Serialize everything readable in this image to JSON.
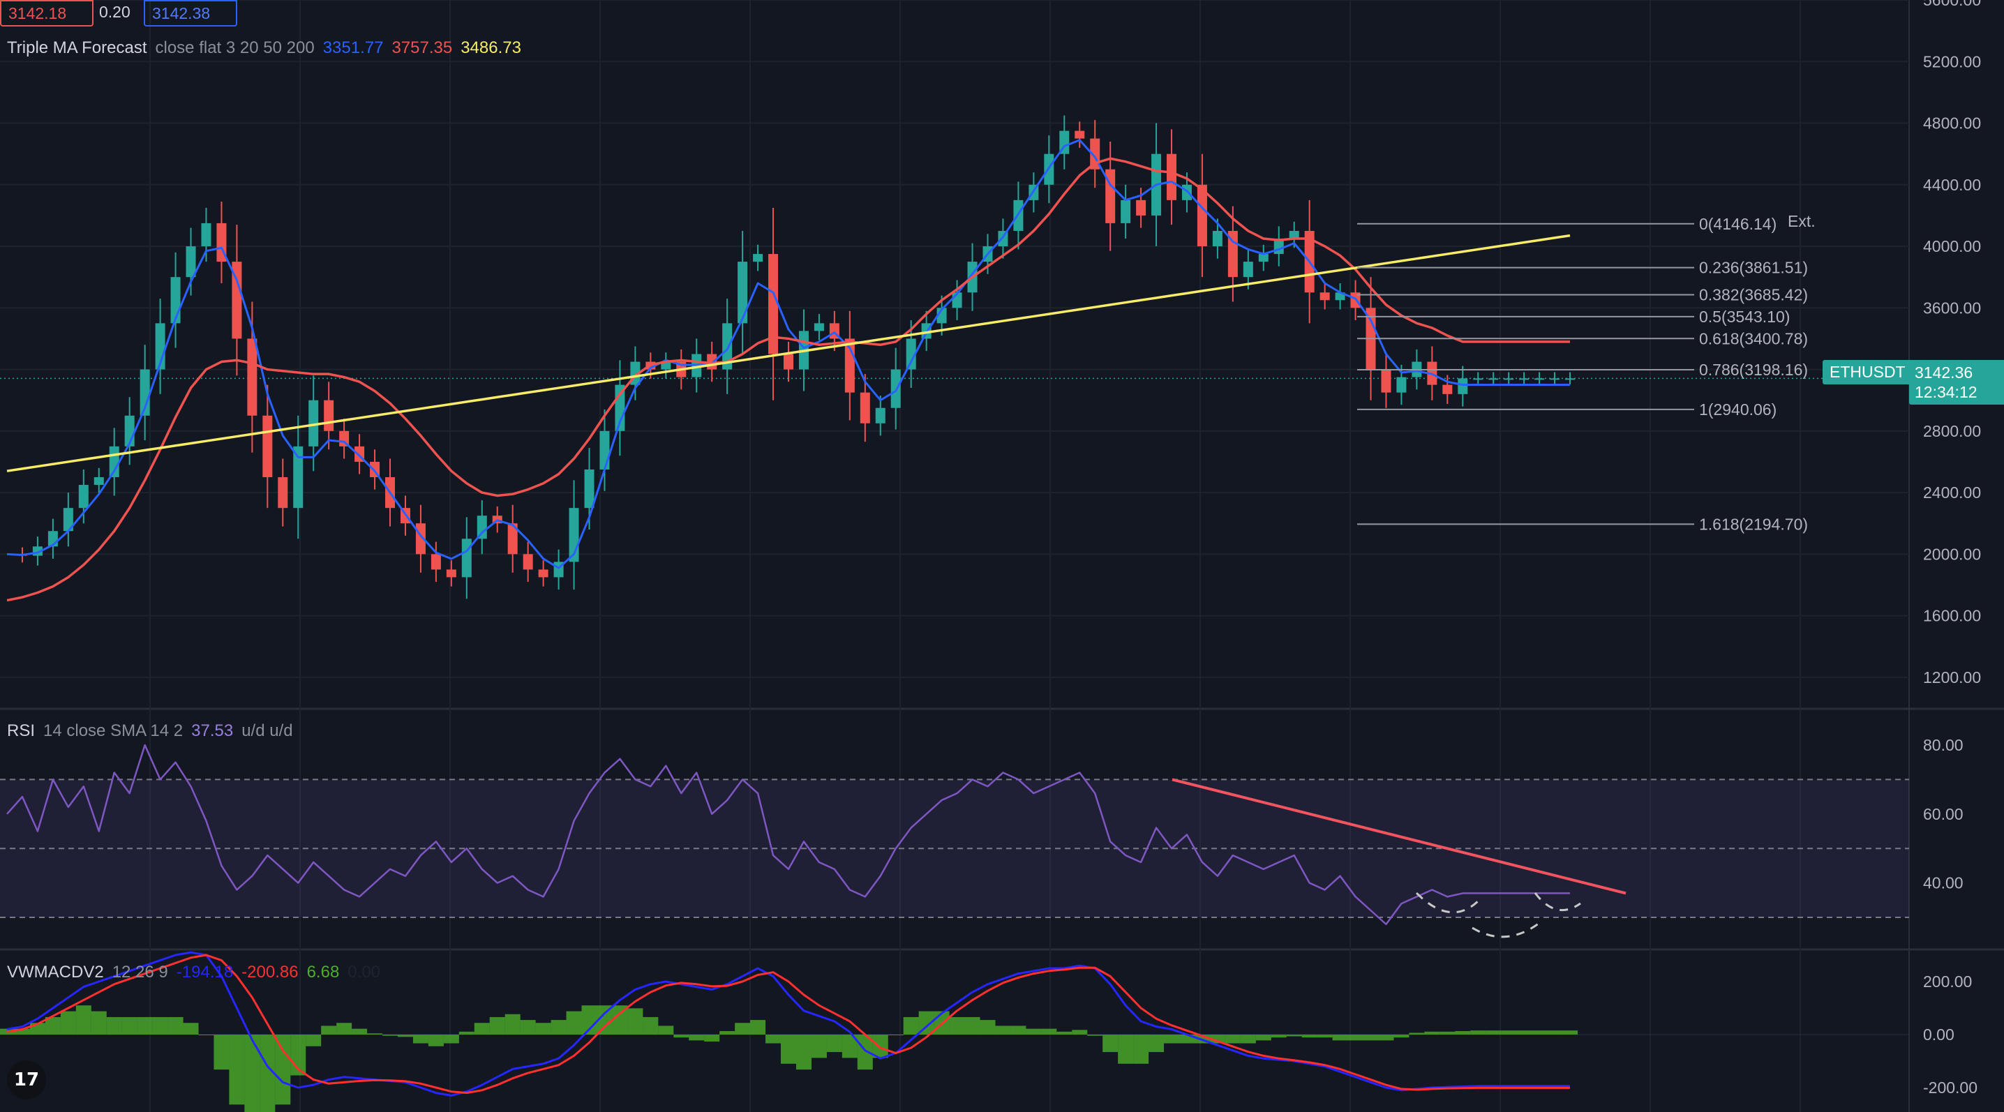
{
  "symbol": "ETHUSDT",
  "price_tag": {
    "label": "ETHUSDT",
    "price": "3142.36",
    "countdown": "12:34:12"
  },
  "quote_boxes": {
    "bid": "3142.18",
    "spread": "0.20",
    "ask": "3142.38"
  },
  "colors": {
    "up": "#26a69a",
    "down": "#ef5350",
    "ma3": "#2962ff",
    "ma20": "#ef5350",
    "ma200": "#f7ec6a",
    "rsi": "#7e57c2",
    "macd": "#2626ff",
    "signal": "#ff3030",
    "hist": "#4caf2a"
  },
  "main_legend": {
    "title": "Triple MA Forecast",
    "params": "close flat 3 20 50 200",
    "v1": "3351.77",
    "v2": "3757.35",
    "v3": "3486.73"
  },
  "rsi_legend": {
    "title": "RSI",
    "params": "14 close SMA 14 2",
    "value": "37.53",
    "extra": "u/d u/d"
  },
  "macd_legend": {
    "title": "VWMACDV2",
    "params": "12 26 9",
    "v1": "-194.18",
    "v2": "-200.86",
    "v3": "6.68",
    "v4": "0.00"
  },
  "price_axis_labels": [
    "5600.00",
    "5200.00",
    "4800.00",
    "4400.00",
    "4000.00",
    "3600.00",
    "2800.00",
    "2400.00",
    "2000.00",
    "1600.00",
    "1200.00"
  ],
  "rsi_axis_labels": [
    "80.00",
    "60.00",
    "40.00"
  ],
  "macd_axis_labels": [
    "200.00",
    "0.00",
    "-200.00"
  ],
  "fib_levels": [
    {
      "label": "0(4146.14)",
      "value": 4146.14
    },
    {
      "label": "0.236(3861.51)",
      "value": 3861.51
    },
    {
      "label": "0.382(3685.42)",
      "value": 3685.42
    },
    {
      "label": "0.5(3543.10)",
      "value": 3543.1
    },
    {
      "label": "0.618(3400.78)",
      "value": 3400.78
    },
    {
      "label": "0.786(3198.16)",
      "value": 3198.16
    },
    {
      "label": "1(2940.06)",
      "value": 2940.06
    },
    {
      "label": "1.618(2194.70)",
      "value": 2194.7
    }
  ],
  "fib_ext_label": "Ext.",
  "chart_data": {
    "type": "line",
    "ylim": [
      1000,
      5600
    ],
    "x": [
      0,
      2,
      4,
      6,
      8,
      10,
      12,
      14,
      16,
      18,
      20,
      22,
      24,
      26,
      28,
      30,
      32,
      34,
      36,
      38,
      40,
      42,
      44,
      46,
      48,
      50,
      52,
      54,
      56,
      58,
      60,
      62,
      64,
      66,
      68,
      70,
      72,
      74,
      76,
      78,
      80,
      82,
      84,
      86,
      88,
      90,
      92,
      94,
      96,
      98,
      100,
      102,
      104,
      106,
      108,
      110,
      112,
      114,
      116,
      118,
      120,
      122,
      124,
      126,
      128,
      130,
      132,
      134,
      136,
      138,
      140,
      142,
      144,
      146,
      148,
      150,
      152,
      154,
      156,
      158,
      160,
      162,
      164,
      166,
      168,
      170,
      172,
      174,
      176,
      178,
      180,
      182,
      184,
      186,
      188,
      190,
      192,
      194,
      196,
      198,
      200,
      202,
      204
    ],
    "series": [
      {
        "values": [
          2000,
          1990,
          2050,
          2150,
          2300,
          2450,
          2500,
          2700,
          2900,
          3200,
          3500,
          3800,
          4000,
          4150,
          3900,
          3400,
          2900,
          2500,
          2300,
          2700,
          3000,
          2800,
          2700,
          2600,
          2500,
          2300,
          2200,
          2000,
          1900,
          1850,
          2100,
          2250,
          2200,
          2000,
          1900,
          1850,
          1950,
          2300,
          2550,
          2800,
          3100,
          3250,
          3200,
          3250,
          3150,
          3300,
          3200,
          3500,
          3900,
          3950,
          3300,
          3200,
          3450,
          3500,
          3400,
          3050,
          2850,
          2950,
          3200,
          3400,
          3500,
          3600,
          3700,
          3900,
          4000,
          4100,
          4300,
          4400,
          4600,
          4750,
          4700,
          4500,
          4150,
          4300,
          4200,
          4600,
          4300,
          4400,
          4000,
          4100,
          3800,
          3900,
          3950,
          4050,
          4100,
          3700,
          3650,
          3700,
          3600,
          3200,
          3050,
          3150,
          3250,
          3100,
          3040,
          3142,
          3142,
          3142,
          3142,
          3142,
          3142,
          3142,
          3142
        ]
      },
      {
        "values": [
          2000,
          1995,
          2010,
          2060,
          2150,
          2270,
          2390,
          2540,
          2720,
          2950,
          3240,
          3530,
          3770,
          3970,
          3990,
          3780,
          3470,
          3040,
          2770,
          2630,
          2630,
          2740,
          2730,
          2640,
          2540,
          2400,
          2260,
          2120,
          2010,
          1970,
          2020,
          2140,
          2220,
          2190,
          2090,
          1970,
          1910,
          2000,
          2240,
          2550,
          2860,
          3080,
          3210,
          3260,
          3230,
          3230,
          3240,
          3330,
          3530,
          3760,
          3700,
          3460,
          3340,
          3380,
          3440,
          3340,
          3120,
          3000,
          3060,
          3250,
          3440,
          3590,
          3690,
          3820,
          3950,
          4060,
          4210,
          4360,
          4510,
          4650,
          4690,
          4580,
          4400,
          4300,
          4330,
          4400,
          4420,
          4360,
          4250,
          4150,
          4030,
          3980,
          3950,
          3980,
          4020,
          3900,
          3760,
          3700,
          3660,
          3520,
          3300,
          3180,
          3190,
          3170,
          3120,
          3100,
          3100,
          3100,
          3100,
          3100,
          3100,
          3100,
          3100
        ]
      },
      {
        "values": [
          1700,
          1720,
          1750,
          1790,
          1850,
          1930,
          2030,
          2150,
          2300,
          2480,
          2680,
          2890,
          3080,
          3200,
          3250,
          3260,
          3240,
          3200,
          3190,
          3180,
          3170,
          3170,
          3150,
          3120,
          3060,
          2980,
          2880,
          2770,
          2650,
          2540,
          2460,
          2400,
          2380,
          2390,
          2420,
          2460,
          2520,
          2620,
          2750,
          2900,
          3040,
          3160,
          3230,
          3250,
          3260,
          3250,
          3240,
          3250,
          3300,
          3370,
          3410,
          3400,
          3380,
          3360,
          3370,
          3380,
          3370,
          3360,
          3380,
          3460,
          3560,
          3650,
          3720,
          3800,
          3870,
          3940,
          4010,
          4100,
          4210,
          4340,
          4460,
          4540,
          4570,
          4550,
          4520,
          4490,
          4480,
          4440,
          4370,
          4280,
          4180,
          4100,
          4050,
          4040,
          4050,
          4050,
          4000,
          3940,
          3850,
          3730,
          3620,
          3550,
          3500,
          3470,
          3420,
          3380,
          3380,
          3380,
          3380,
          3380,
          3380,
          3380,
          3380
        ]
      },
      {
        "values": [
          2540,
          2555,
          2570,
          2585,
          2600,
          2615,
          2630,
          2645,
          2660,
          2675,
          2690,
          2705,
          2720,
          2735,
          2750,
          2765,
          2780,
          2795,
          2810,
          2825,
          2840,
          2855,
          2870,
          2885,
          2900,
          2915,
          2930,
          2945,
          2960,
          2975,
          2990,
          3005,
          3020,
          3035,
          3050,
          3065,
          3080,
          3095,
          3110,
          3125,
          3140,
          3155,
          3170,
          3185,
          3200,
          3215,
          3230,
          3245,
          3260,
          3275,
          3290,
          3305,
          3320,
          3335,
          3350,
          3365,
          3380,
          3395,
          3410,
          3425,
          3440,
          3455,
          3470,
          3485,
          3500,
          3515,
          3530,
          3545,
          3560,
          3575,
          3590,
          3605,
          3620,
          3635,
          3650,
          3665,
          3680,
          3695,
          3710,
          3725,
          3740,
          3755,
          3770,
          3785,
          3800,
          3815,
          3830,
          3845,
          3860,
          3875,
          3890,
          3905,
          3920,
          3935,
          3950,
          3965,
          3980,
          3995,
          4010,
          4025,
          4040,
          4055,
          4070
        ]
      }
    ],
    "rsi": [
      60,
      65,
      55,
      70,
      62,
      68,
      55,
      72,
      66,
      80,
      70,
      75,
      68,
      58,
      45,
      38,
      42,
      48,
      44,
      40,
      46,
      42,
      38,
      36,
      40,
      44,
      42,
      48,
      52,
      46,
      50,
      44,
      40,
      42,
      38,
      36,
      44,
      58,
      66,
      72,
      76,
      70,
      68,
      74,
      66,
      72,
      60,
      64,
      70,
      66,
      48,
      44,
      52,
      46,
      44,
      38,
      36,
      42,
      50,
      56,
      60,
      64,
      66,
      70,
      68,
      72,
      70,
      66,
      68,
      70,
      72,
      66,
      52,
      48,
      46,
      56,
      50,
      54,
      46,
      42,
      48,
      46,
      44,
      46,
      48,
      40,
      38,
      42,
      36,
      32,
      28,
      34,
      36,
      38,
      36,
      37,
      37,
      37,
      37,
      37,
      37,
      37,
      37
    ],
    "macd": [
      20,
      30,
      60,
      100,
      140,
      180,
      200,
      220,
      240,
      260,
      280,
      300,
      310,
      300,
      220,
      100,
      -20,
      -120,
      -180,
      -200,
      -190,
      -170,
      -160,
      -165,
      -170,
      -175,
      -180,
      -200,
      -220,
      -230,
      -215,
      -190,
      -160,
      -130,
      -120,
      -110,
      -90,
      -40,
      20,
      80,
      130,
      170,
      190,
      200,
      190,
      180,
      170,
      190,
      220,
      250,
      220,
      150,
      90,
      70,
      50,
      10,
      -60,
      -90,
      -70,
      -20,
      30,
      80,
      120,
      160,
      190,
      210,
      230,
      240,
      250,
      250,
      260,
      250,
      190,
      110,
      50,
      30,
      20,
      0,
      -20,
      -40,
      -60,
      -80,
      -90,
      -95,
      -100,
      -110,
      -120,
      -140,
      -160,
      -180,
      -200,
      -210,
      -205,
      -200,
      -198,
      -196,
      -194,
      -194,
      -194,
      -194,
      -194,
      -194,
      -194
    ],
    "signal": [
      10,
      20,
      40,
      70,
      100,
      130,
      160,
      190,
      210,
      230,
      250,
      270,
      290,
      300,
      280,
      220,
      140,
      40,
      -60,
      -130,
      -170,
      -185,
      -180,
      -175,
      -172,
      -173,
      -176,
      -185,
      -200,
      -215,
      -220,
      -210,
      -190,
      -165,
      -145,
      -130,
      -115,
      -80,
      -30,
      30,
      80,
      125,
      160,
      185,
      195,
      190,
      182,
      184,
      200,
      225,
      235,
      200,
      150,
      110,
      80,
      50,
      0,
      -50,
      -70,
      -50,
      -10,
      40,
      90,
      130,
      165,
      195,
      215,
      230,
      240,
      245,
      252,
      252,
      220,
      160,
      100,
      60,
      35,
      15,
      -5,
      -25,
      -45,
      -65,
      -80,
      -90,
      -97,
      -105,
      -115,
      -130,
      -150,
      -170,
      -190,
      -205,
      -208,
      -205,
      -203,
      -202,
      -201,
      -201,
      -201,
      -201,
      -201,
      -201,
      -201
    ]
  }
}
